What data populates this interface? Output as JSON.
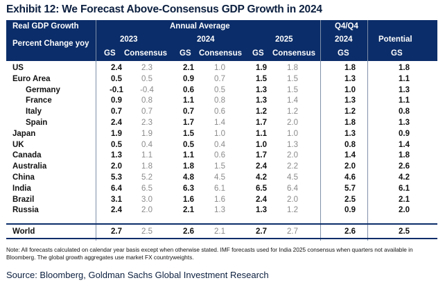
{
  "title": "Exhibit 12: We Forecast Above-Consensus GDP Growth in 2024",
  "header": {
    "row_label_1": "Real GDP Growth",
    "row_label_2": "Percent Change yoy",
    "annual_average": "Annual Average",
    "q4q4": "Q4/Q4",
    "year_2023": "2023",
    "year_2024": "2024",
    "year_2025": "2025",
    "year_q4": "2024",
    "potential": "Potential",
    "gs": "GS",
    "consensus": "Consensus"
  },
  "rows": [
    {
      "label": "US",
      "indent": false,
      "gs23": "2.4",
      "c23": "2.3",
      "gs24": "2.1",
      "c24": "1.0",
      "gs25": "1.9",
      "c25": "1.8",
      "q4": "1.8",
      "pot": "1.8"
    },
    {
      "label": "Euro Area",
      "indent": false,
      "gs23": "0.5",
      "c23": "0.5",
      "gs24": "0.9",
      "c24": "0.7",
      "gs25": "1.5",
      "c25": "1.5",
      "q4": "1.3",
      "pot": "1.1"
    },
    {
      "label": "Germany",
      "indent": true,
      "gs23": "-0.1",
      "c23": "-0.4",
      "gs24": "0.6",
      "c24": "0.5",
      "gs25": "1.3",
      "c25": "1.5",
      "q4": "1.0",
      "pot": "1.3"
    },
    {
      "label": "France",
      "indent": true,
      "gs23": "0.9",
      "c23": "0.8",
      "gs24": "1.1",
      "c24": "0.8",
      "gs25": "1.3",
      "c25": "1.4",
      "q4": "1.3",
      "pot": "1.1"
    },
    {
      "label": "Italy",
      "indent": true,
      "gs23": "0.7",
      "c23": "0.7",
      "gs24": "0.7",
      "c24": "0.6",
      "gs25": "1.2",
      "c25": "1.2",
      "q4": "1.2",
      "pot": "0.8"
    },
    {
      "label": "Spain",
      "indent": true,
      "gs23": "2.4",
      "c23": "2.3",
      "gs24": "1.7",
      "c24": "1.4",
      "gs25": "1.7",
      "c25": "2.0",
      "q4": "1.8",
      "pot": "1.3"
    },
    {
      "label": "Japan",
      "indent": false,
      "gs23": "1.9",
      "c23": "1.9",
      "gs24": "1.5",
      "c24": "1.0",
      "gs25": "1.1",
      "c25": "1.0",
      "q4": "1.3",
      "pot": "0.9"
    },
    {
      "label": "UK",
      "indent": false,
      "gs23": "0.5",
      "c23": "0.4",
      "gs24": "0.5",
      "c24": "0.4",
      "gs25": "1.0",
      "c25": "1.3",
      "q4": "0.8",
      "pot": "1.4"
    },
    {
      "label": "Canada",
      "indent": false,
      "gs23": "1.3",
      "c23": "1.1",
      "gs24": "1.1",
      "c24": "0.6",
      "gs25": "1.7",
      "c25": "2.0",
      "q4": "1.4",
      "pot": "1.8"
    },
    {
      "label": "Australia",
      "indent": false,
      "gs23": "2.0",
      "c23": "1.8",
      "gs24": "1.8",
      "c24": "1.5",
      "gs25": "2.4",
      "c25": "2.2",
      "q4": "2.0",
      "pot": "2.6"
    },
    {
      "label": "China",
      "indent": false,
      "gs23": "5.3",
      "c23": "5.2",
      "gs24": "4.8",
      "c24": "4.5",
      "gs25": "4.2",
      "c25": "4.5",
      "q4": "4.6",
      "pot": "4.2"
    },
    {
      "label": "India",
      "indent": false,
      "gs23": "6.4",
      "c23": "6.5",
      "gs24": "6.3",
      "c24": "6.1",
      "gs25": "6.5",
      "c25": "6.4",
      "q4": "5.7",
      "pot": "6.1"
    },
    {
      "label": "Brazil",
      "indent": false,
      "gs23": "3.1",
      "c23": "3.0",
      "gs24": "1.6",
      "c24": "1.6",
      "gs25": "2.4",
      "c25": "2.0",
      "q4": "2.5",
      "pot": "2.1"
    },
    {
      "label": "Russia",
      "indent": false,
      "gs23": "2.4",
      "c23": "2.0",
      "gs24": "2.1",
      "c24": "1.3",
      "gs25": "1.3",
      "c25": "1.2",
      "q4": "0.9",
      "pot": "2.0"
    }
  ],
  "world": {
    "label": "World",
    "gs23": "2.7",
    "c23": "2.5",
    "gs24": "2.6",
    "c24": "2.1",
    "gs25": "2.7",
    "c25": "2.7",
    "q4": "2.6",
    "pot": "2.5"
  },
  "note": "Note: All forecasts calculated on calendar year basis except when otherwise stated. IMF forecasts used for India 2025 consensus when quarters not available in Bloomberg. The global growth aggregates use market FX countryweights.",
  "source": "Source: Bloomberg, Goldman Sachs Global Investment Research"
}
